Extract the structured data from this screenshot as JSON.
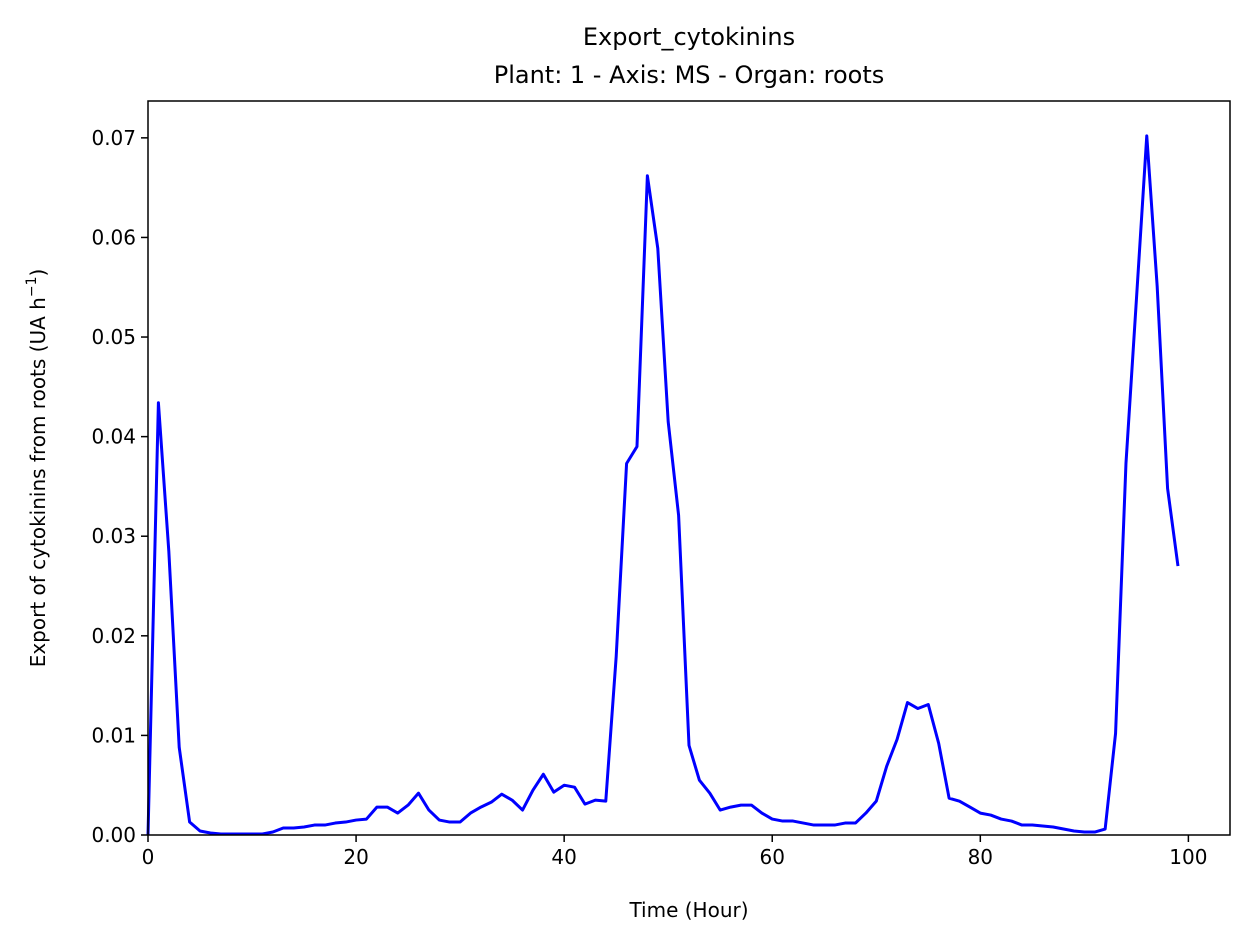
{
  "chart_data": {
    "type": "line",
    "title": "Export_cytokinins",
    "subtitle": "Plant: 1 - Axis: MS - Organ: roots",
    "xlabel": "Time (Hour)",
    "ylabel": "Export of cytokinins from roots (UA h",
    "ylabel_exponent": "−1",
    "ylabel_close": ")",
    "xlim": [
      0,
      104
    ],
    "ylim": [
      0,
      0.0737
    ],
    "x_ticks": [
      0,
      20,
      40,
      60,
      80,
      100
    ],
    "x_tick_labels": [
      "0",
      "20",
      "40",
      "60",
      "80",
      "100"
    ],
    "y_ticks": [
      0,
      0.01,
      0.02,
      0.03,
      0.04,
      0.05,
      0.06,
      0.07
    ],
    "y_tick_labels": [
      "0.00",
      "0.01",
      "0.02",
      "0.03",
      "0.04",
      "0.05",
      "0.06",
      "0.07"
    ],
    "grid": false,
    "series": [
      {
        "color": "#0000ff",
        "x": [
          0,
          1,
          2,
          3,
          4,
          5,
          6,
          7,
          8,
          9,
          10,
          11,
          12,
          13,
          14,
          15,
          16,
          17,
          18,
          19,
          20,
          21,
          22,
          23,
          24,
          25,
          26,
          27,
          28,
          29,
          30,
          31,
          32,
          33,
          34,
          35,
          36,
          37,
          38,
          39,
          40,
          41,
          42,
          43,
          44,
          45,
          46,
          47,
          48,
          49,
          50,
          51,
          52,
          53,
          54,
          55,
          56,
          57,
          58,
          59,
          60,
          61,
          62,
          63,
          64,
          65,
          66,
          67,
          68,
          69,
          70,
          71,
          72,
          73,
          74,
          75,
          76,
          77,
          78,
          79,
          80,
          81,
          82,
          83,
          84,
          85,
          86,
          87,
          88,
          89,
          90,
          91,
          92,
          93,
          94,
          95,
          96,
          97,
          98,
          99
        ],
        "y": [
          0.0,
          0.0434,
          0.0285,
          0.0088,
          0.0013,
          0.0004,
          0.0002,
          0.0001,
          0.0001,
          0.0001,
          0.0001,
          0.0001,
          0.0003,
          0.0007,
          0.0007,
          0.0008,
          0.001,
          0.001,
          0.0012,
          0.0013,
          0.0015,
          0.0016,
          0.0028,
          0.0028,
          0.0022,
          0.003,
          0.0042,
          0.0025,
          0.0015,
          0.0013,
          0.0013,
          0.0022,
          0.0028,
          0.0033,
          0.0041,
          0.0035,
          0.0025,
          0.0045,
          0.0061,
          0.0043,
          0.005,
          0.0048,
          0.0031,
          0.0035,
          0.0034,
          0.0179,
          0.0373,
          0.039,
          0.0662,
          0.0589,
          0.0415,
          0.0321,
          0.009,
          0.0055,
          0.0042,
          0.0025,
          0.0028,
          0.003,
          0.003,
          0.0022,
          0.0016,
          0.0014,
          0.0014,
          0.0012,
          0.001,
          0.001,
          0.001,
          0.0012,
          0.0012,
          0.0022,
          0.0034,
          0.0069,
          0.0096,
          0.0133,
          0.0127,
          0.0131,
          0.0092,
          0.0037,
          0.0034,
          0.0028,
          0.0022,
          0.002,
          0.0016,
          0.0014,
          0.001,
          0.001,
          0.0009,
          0.0008,
          0.0006,
          0.0004,
          0.0003,
          0.0003,
          0.0006,
          0.0102,
          0.0373,
          0.0537,
          0.0702,
          0.0551,
          0.0348,
          0.027
        ]
      }
    ]
  }
}
